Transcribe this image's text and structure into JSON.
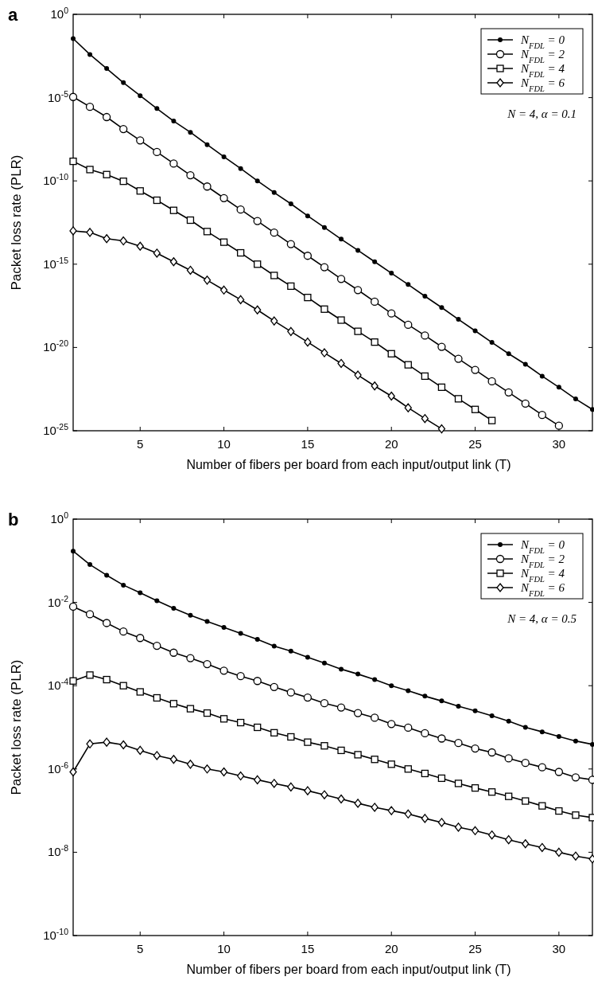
{
  "chart_data": [
    {
      "type": "line",
      "title": "a",
      "xlabel": "Number of fibers per board from each input/output link (T)",
      "ylabel": "Packet loss rate (PLR)",
      "log": "y",
      "legend": "top right",
      "line_style": "solid",
      "x": [
        1,
        2,
        3,
        4,
        5,
        6,
        7,
        8,
        9,
        10,
        11,
        12,
        13,
        14,
        15,
        16,
        17,
        18,
        19,
        20,
        21,
        22,
        23,
        24,
        25,
        26,
        27,
        28,
        29,
        30,
        31,
        32
      ],
      "xlim": [
        1,
        32
      ],
      "xticks": [
        5,
        10,
        15,
        20,
        25,
        30
      ],
      "ylim": [
        1e-25,
        1
      ],
      "yticks": [
        {
          "value": 1,
          "label": "10$^{0}$"
        },
        {
          "value": 1e-05,
          "label": "10$^{-5}$"
        },
        {
          "value": 1e-10,
          "label": "10$^{-10}$"
        },
        {
          "value": 1e-15,
          "label": "10$^{-15}$"
        },
        {
          "value": 1e-20,
          "label": "10$^{-20}$"
        },
        {
          "value": 1e-25,
          "label": "10$^{-25}$"
        }
      ],
      "annotations": [
        "N = 4, α = 0.1"
      ],
      "series": [
        {
          "name": "N$_{FDL}$ = 0",
          "color": "#000000",
          "marker": "circle",
          "values": [
            0.035,
            0.0039,
            0.00056,
            7.9e-05,
            1.3e-05,
            2.2e-06,
            3.9e-07,
            8.3e-08,
            1.5e-08,
            2.8e-09,
            5.5e-10,
            1e-10,
            2e-11,
            4.2e-12,
            7.9e-13,
            1.6e-13,
            3.2e-14,
            6.8e-15,
            1.4e-15,
            2.9e-16,
            6e-17,
            1.2e-17,
            2.5e-18,
            4.9e-19,
            1e-19,
            2e-20,
            4.2e-21,
            9.8e-22,
            1.9e-22,
            4.1e-23,
            8.1e-24,
            1.9e-24
          ]
        },
        {
          "name": "N$_{FDL}$ = 2",
          "color": "#000000",
          "marker": "circle",
          "values": [
            1.1e-05,
            2.8e-06,
            6.8e-07,
            1.3e-07,
            2.7e-08,
            5.4e-09,
            1.1e-09,
            2.2e-10,
            4.6e-11,
            9.3e-12,
            1.9e-12,
            3.9e-13,
            7.8e-14,
            1.6e-14,
            3.2e-15,
            6.6e-16,
            1.3e-16,
            2.8e-17,
            5.6e-18,
            1.1e-18,
            2.3e-19,
            5.2e-20,
            1.1e-20,
            2.1e-21,
            4.5e-22,
            9.3e-23,
            2e-23,
            4.3e-24,
            8.9e-25,
            2e-25,
            null,
            null
          ]
        },
        {
          "name": "N$_{FDL}$ = 4",
          "color": "#000000",
          "marker": "square",
          "values": [
            1.5e-09,
            4.8e-10,
            2.4e-10,
            9.5e-11,
            2.5e-11,
            6.9e-12,
            1.7e-12,
            4.4e-13,
            9.1e-14,
            2.1e-14,
            4.8e-15,
            1e-15,
            2.1e-16,
            4.8e-17,
            1e-17,
            2e-18,
            4.4e-19,
            9.3e-20,
            2.1e-20,
            4.2e-21,
            9.1e-22,
            1.9e-22,
            4.1e-23,
            8.3e-24,
            1.9e-24,
            4.1e-25,
            null,
            null,
            null,
            null,
            null,
            null
          ]
        },
        {
          "name": "N$_{FDL}$ = 6",
          "color": "#000000",
          "marker": "diamond",
          "values": [
            1e-13,
            8.1e-14,
            3.4e-14,
            2.5e-14,
            1.2e-14,
            4.6e-15,
            1.4e-15,
            4.3e-16,
            1.1e-16,
            2.8e-17,
            7.4e-18,
            1.8e-18,
            3.9e-19,
            9.1e-20,
            2.1e-20,
            4.8e-21,
            1.1e-21,
            2.2e-22,
            4.9e-23,
            1.2e-23,
            2.4e-24,
            5.4e-25,
            1.3e-25,
            null,
            null,
            null,
            null,
            null,
            null,
            null,
            null,
            null
          ]
        }
      ]
    },
    {
      "type": "line",
      "title": "b",
      "xlabel": "Number of fibers per board from each input/output link (T)",
      "ylabel": "Packet loss rate (PLR)",
      "log": "y",
      "legend": "top right",
      "line_style": "solid",
      "x": [
        1,
        2,
        3,
        4,
        5,
        6,
        7,
        8,
        9,
        10,
        11,
        12,
        13,
        14,
        15,
        16,
        17,
        18,
        19,
        20,
        21,
        22,
        23,
        24,
        25,
        26,
        27,
        28,
        29,
        30,
        31,
        32
      ],
      "xlim": [
        1,
        32
      ],
      "xticks": [
        5,
        10,
        15,
        20,
        25,
        30
      ],
      "ylim": [
        1e-10,
        1
      ],
      "yticks": [
        {
          "value": 1,
          "label": "10$^{0}$"
        },
        {
          "value": 0.01,
          "label": "10$^{-2}$"
        },
        {
          "value": 0.0001,
          "label": "10$^{-4}$"
        },
        {
          "value": 1e-06,
          "label": "10$^{-6}$"
        },
        {
          "value": 1e-08,
          "label": "10$^{-8}$"
        },
        {
          "value": 1e-10,
          "label": "10$^{-10}$"
        }
      ],
      "annotations": [
        "N = 4, α = 0.5"
      ],
      "series": [
        {
          "name": "N$_{FDL}$ = 0",
          "color": "#000000",
          "marker": "circle",
          "values": [
            0.17,
            0.081,
            0.045,
            0.026,
            0.017,
            0.011,
            0.0072,
            0.0049,
            0.0035,
            0.0025,
            0.0018,
            0.0013,
            0.00089,
            0.00068,
            0.00048,
            0.00035,
            0.00025,
            0.00019,
            0.00014,
            0.0001,
            7.6e-05,
            5.6e-05,
            4.3e-05,
            3.2e-05,
            2.5e-05,
            1.9e-05,
            1.4e-05,
            1e-05,
            7.8e-06,
            6e-06,
            4.7e-06,
            3.9e-06
          ]
        },
        {
          "name": "N$_{FDL}$ = 2",
          "color": "#000000",
          "marker": "circle",
          "values": [
            0.0079,
            0.0052,
            0.0032,
            0.002,
            0.0014,
            0.00091,
            0.00062,
            0.00046,
            0.00033,
            0.00023,
            0.00017,
            0.00013,
            9.3e-05,
            6.9e-05,
            5.2e-05,
            3.8e-05,
            3e-05,
            2.2e-05,
            1.7e-05,
            1.2e-05,
            9.8e-06,
            7.2e-06,
            5.4e-06,
            4.2e-06,
            3.1e-06,
            2.5e-06,
            1.8e-06,
            1.4e-06,
            1.1e-06,
            8.5e-07,
            6.3e-07,
            5.5e-07
          ]
        },
        {
          "name": "N$_{FDL}$ = 4",
          "color": "#000000",
          "marker": "square",
          "values": [
            0.00013,
            0.00018,
            0.00014,
            0.0001,
            7.1e-05,
            5.1e-05,
            3.7e-05,
            2.8e-05,
            2.2e-05,
            1.6e-05,
            1.3e-05,
            1e-05,
            7.4e-06,
            5.9e-06,
            4.4e-06,
            3.6e-06,
            2.8e-06,
            2.2e-06,
            1.7e-06,
            1.3e-06,
            1e-06,
            7.8e-07,
            6e-07,
            4.5e-07,
            3.5e-07,
            2.8e-07,
            2.2e-07,
            1.7e-07,
            1.3e-07,
            9.8e-08,
            7.8e-08,
            6.8e-08
          ]
        },
        {
          "name": "N$_{FDL}$ = 6",
          "color": "#000000",
          "marker": "diamond",
          "values": [
            8.5e-07,
            4e-06,
            4.4e-06,
            3.8e-06,
            2.8e-06,
            2.1e-06,
            1.7e-06,
            1.3e-06,
            1e-06,
            8.5e-07,
            6.8e-07,
            5.5e-07,
            4.5e-07,
            3.7e-07,
            3e-07,
            2.4e-07,
            1.9e-07,
            1.5e-07,
            1.2e-07,
            1e-07,
            8.3e-08,
            6.5e-08,
            5.2e-08,
            4e-08,
            3.3e-08,
            2.6e-08,
            2e-08,
            1.6e-08,
            1.3e-08,
            1e-08,
            8.1e-09,
            6.9e-09
          ]
        }
      ]
    }
  ]
}
